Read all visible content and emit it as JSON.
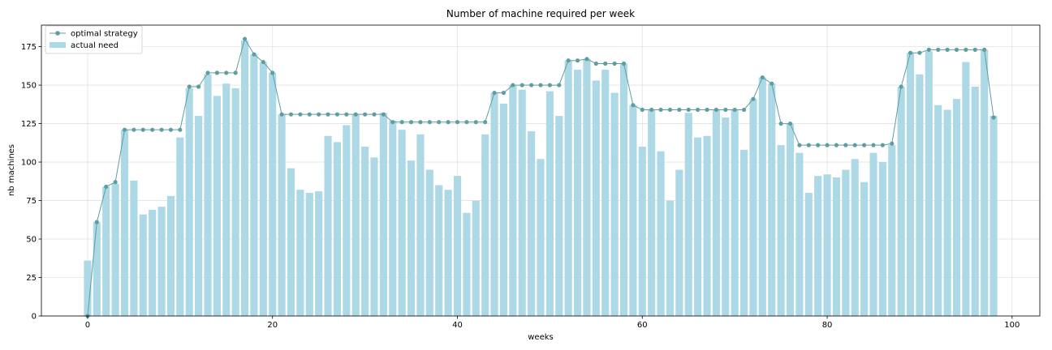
{
  "chart_data": {
    "type": "bar",
    "title": "Number of machine required per week",
    "xlabel": "weeks",
    "ylabel": "nb machines",
    "xlim": [
      -5,
      103
    ],
    "ylim": [
      0,
      189
    ],
    "xticks": [
      0,
      20,
      40,
      60,
      80,
      100
    ],
    "yticks": [
      0,
      25,
      50,
      75,
      100,
      125,
      150,
      175
    ],
    "grid": true,
    "legend_position": "top-left",
    "x": [
      0,
      1,
      2,
      3,
      4,
      5,
      6,
      7,
      8,
      9,
      10,
      11,
      12,
      13,
      14,
      15,
      16,
      17,
      18,
      19,
      20,
      21,
      22,
      23,
      24,
      25,
      26,
      27,
      28,
      29,
      30,
      31,
      32,
      33,
      34,
      35,
      36,
      37,
      38,
      39,
      40,
      41,
      42,
      43,
      44,
      45,
      46,
      47,
      48,
      49,
      50,
      51,
      52,
      53,
      54,
      55,
      56,
      57,
      58,
      59,
      60,
      61,
      62,
      63,
      64,
      65,
      66,
      67,
      68,
      69,
      70,
      71,
      72,
      73,
      74,
      75,
      76,
      77,
      78,
      79,
      80,
      81,
      82,
      83,
      84,
      85,
      86,
      87,
      88,
      89,
      90,
      91,
      92,
      93,
      94,
      95,
      96,
      97,
      98
    ],
    "series": [
      {
        "name": "actual need",
        "kind": "bar",
        "color": "#add8e6",
        "values": [
          36,
          61,
          84,
          86,
          121,
          88,
          66,
          69,
          71,
          78,
          116,
          148,
          130,
          157,
          143,
          151,
          148,
          179,
          170,
          165,
          158,
          131,
          96,
          82,
          80,
          81,
          117,
          113,
          124,
          131,
          110,
          103,
          132,
          127,
          121,
          101,
          118,
          95,
          85,
          82,
          91,
          67,
          75,
          118,
          145,
          138,
          150,
          147,
          120,
          102,
          146,
          130,
          166,
          160,
          167,
          153,
          160,
          145,
          164,
          137,
          110,
          134,
          107,
          75,
          95,
          132,
          116,
          117,
          134,
          129,
          134,
          108,
          141,
          155,
          151,
          111,
          125,
          106,
          80,
          91,
          92,
          90,
          95,
          102,
          87,
          106,
          100,
          111,
          149,
          171,
          157,
          172,
          137,
          134,
          141,
          165,
          149,
          173,
          130
        ]
      },
      {
        "name": "optimal strategy",
        "kind": "line",
        "color": "#5f9ea0",
        "values": [
          0,
          61,
          84,
          87,
          121,
          121,
          121,
          121,
          121,
          121,
          121,
          149,
          149,
          158,
          158,
          158,
          158,
          180,
          170,
          165,
          158,
          131,
          131,
          131,
          131,
          131,
          131,
          131,
          131,
          131,
          131,
          131,
          131,
          126,
          126,
          126,
          126,
          126,
          126,
          126,
          126,
          126,
          126,
          126,
          145,
          145,
          150,
          150,
          150,
          150,
          150,
          150,
          166,
          166,
          167,
          164,
          164,
          164,
          164,
          137,
          134,
          134,
          134,
          134,
          134,
          134,
          134,
          134,
          134,
          134,
          134,
          134,
          141,
          155,
          151,
          125,
          125,
          111,
          111,
          111,
          111,
          111,
          111,
          111,
          111,
          111,
          111,
          112,
          149,
          171,
          171,
          173,
          173,
          173,
          173,
          173,
          173,
          173,
          129
        ]
      }
    ]
  }
}
